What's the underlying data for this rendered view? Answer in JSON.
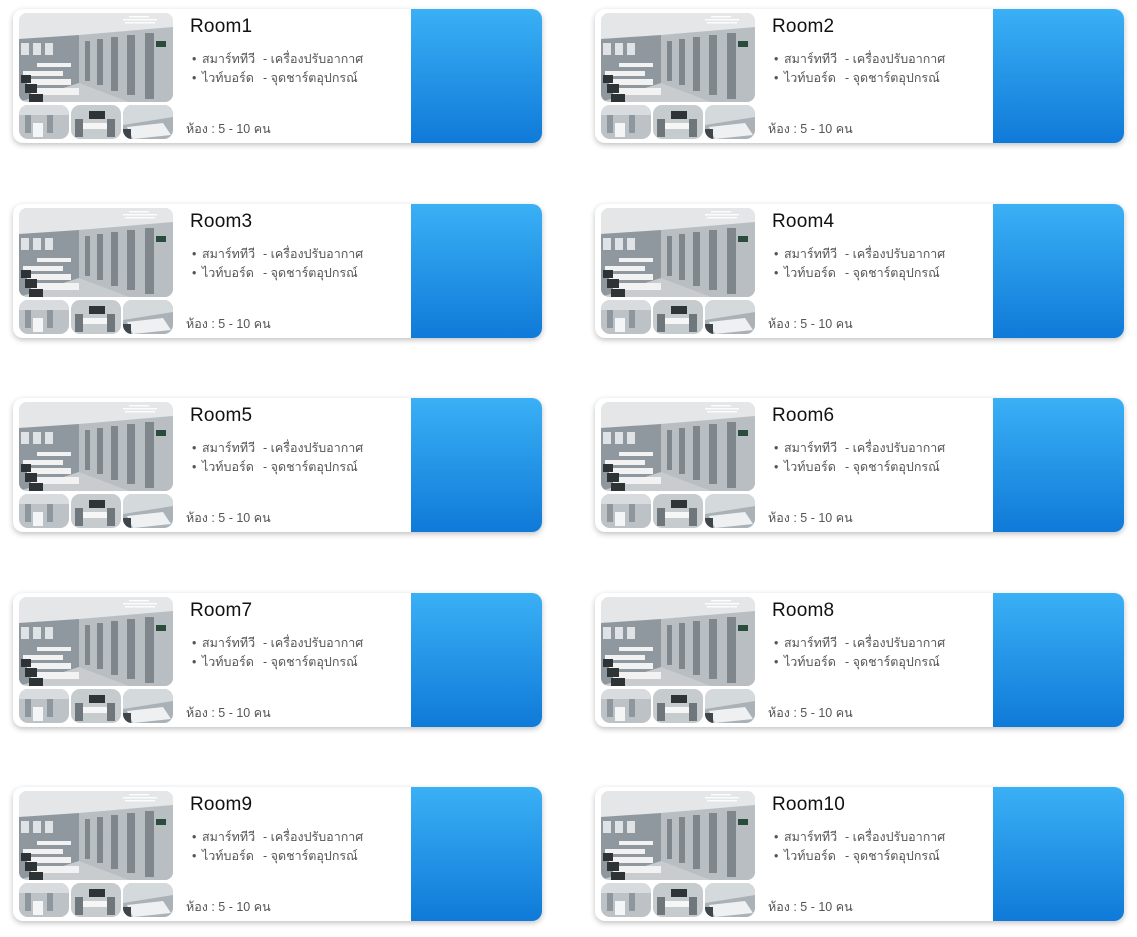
{
  "rooms": [
    {
      "name": "Room1",
      "features": [
        [
          "สมาร์ททีวี",
          "เครื่องปรับอากาศ"
        ],
        [
          "ไวท์บอร์ด",
          "จุดชาร์ตอุปกรณ์"
        ]
      ],
      "capacity": "ห้อง : 5 - 10 คน"
    },
    {
      "name": "Room2",
      "features": [
        [
          "สมาร์ททีวี",
          "เครื่องปรับอากาศ"
        ],
        [
          "ไวท์บอร์ด",
          "จุดชาร์ตอุปกรณ์"
        ]
      ],
      "capacity": "ห้อง : 5 - 10 คน"
    },
    {
      "name": "Room3",
      "features": [
        [
          "สมาร์ททีวี",
          "เครื่องปรับอากาศ"
        ],
        [
          "ไวท์บอร์ด",
          "จุดชาร์ตอุปกรณ์"
        ]
      ],
      "capacity": "ห้อง : 5 - 10 คน"
    },
    {
      "name": "Room4",
      "features": [
        [
          "สมาร์ททีวี",
          "เครื่องปรับอากาศ"
        ],
        [
          "ไวท์บอร์ด",
          "จุดชาร์ตอุปกรณ์"
        ]
      ],
      "capacity": "ห้อง : 5 - 10 คน"
    },
    {
      "name": "Room5",
      "features": [
        [
          "สมาร์ททีวี",
          "เครื่องปรับอากาศ"
        ],
        [
          "ไวท์บอร์ด",
          "จุดชาร์ตอุปกรณ์"
        ]
      ],
      "capacity": "ห้อง : 5 - 10 คน"
    },
    {
      "name": "Room6",
      "features": [
        [
          "สมาร์ททีวี",
          "เครื่องปรับอากาศ"
        ],
        [
          "ไวท์บอร์ด",
          "จุดชาร์ตอุปกรณ์"
        ]
      ],
      "capacity": "ห้อง : 5 - 10 คน"
    },
    {
      "name": "Room7",
      "features": [
        [
          "สมาร์ททีวี",
          "เครื่องปรับอากาศ"
        ],
        [
          "ไวท์บอร์ด",
          "จุดชาร์ตอุปกรณ์"
        ]
      ],
      "capacity": "ห้อง : 5 - 10 คน"
    },
    {
      "name": "Room8",
      "features": [
        [
          "สมาร์ททีวี",
          "เครื่องปรับอากาศ"
        ],
        [
          "ไวท์บอร์ด",
          "จุดชาร์ตอุปกรณ์"
        ]
      ],
      "capacity": "ห้อง : 5 - 10 คน"
    },
    {
      "name": "Room9",
      "features": [
        [
          "สมาร์ททีวี",
          "เครื่องปรับอากาศ"
        ],
        [
          "ไวท์บอร์ด",
          "จุดชาร์ตอุปกรณ์"
        ]
      ],
      "capacity": "ห้อง : 5 - 10 คน"
    },
    {
      "name": "Room10",
      "features": [
        [
          "สมาร์ททีวี",
          "เครื่องปรับอากาศ"
        ],
        [
          "ไวท์บอร์ด",
          "จุดชาร์ตอุปกรณ์"
        ]
      ],
      "capacity": "ห้อง : 5 - 10 คน"
    }
  ],
  "colors": {
    "accent_top": "#3ab0f5",
    "accent_bottom": "#0f7ad8"
  }
}
